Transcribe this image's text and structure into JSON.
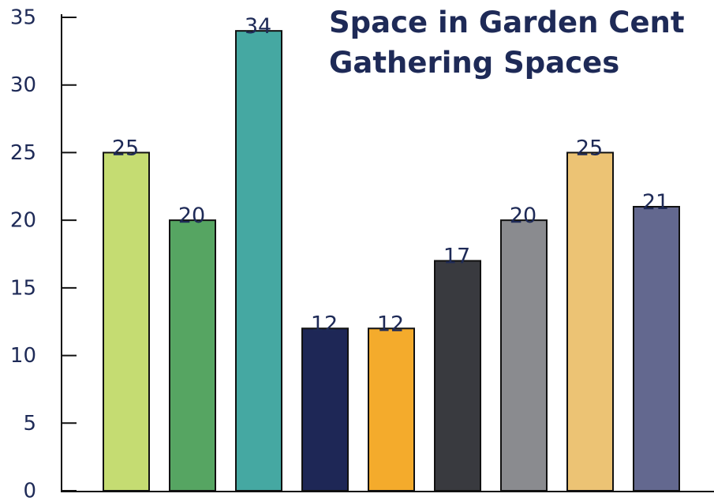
{
  "chart_data": {
    "type": "bar",
    "title": [
      "Space in Garden Cent",
      "Gathering Spaces"
    ],
    "categories": [
      null,
      null,
      null,
      null,
      null,
      null,
      null,
      null,
      null
    ],
    "values": [
      25,
      20,
      34,
      12,
      12,
      17,
      20,
      25,
      21
    ],
    "colors": [
      "#c5dc72",
      "#56a562",
      "#45a8a2",
      "#1e2756",
      "#f4ab2c",
      "#393a3f",
      "#8a8b8f",
      "#ecc374",
      "#63688f"
    ],
    "ylim": [
      0,
      35
    ],
    "yticks": [
      0,
      5,
      10,
      15,
      20,
      25,
      30,
      35
    ],
    "grid": false
  }
}
